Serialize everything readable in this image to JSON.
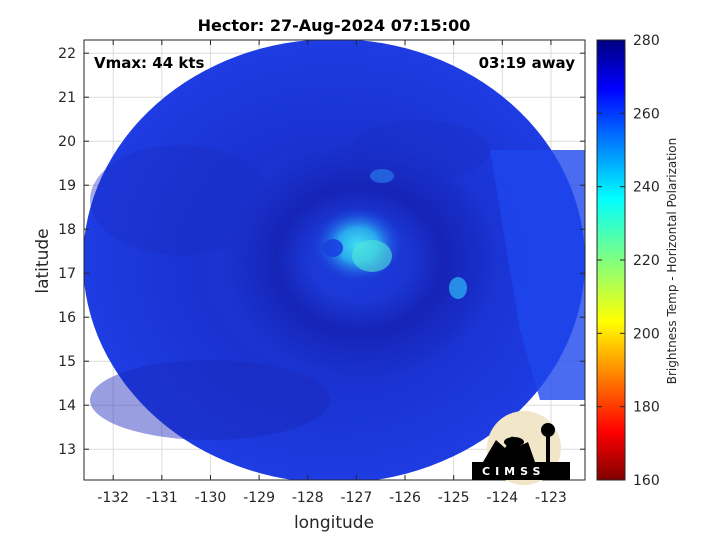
{
  "title": "Hector: 27-Aug-2024 07:15:00",
  "annotations": {
    "vmax": "Vmax: 44 kts",
    "time_away": "03:19 away"
  },
  "logo": {
    "text": "CIMSS"
  },
  "chart_data": {
    "type": "heatmap",
    "xlabel": "longitude",
    "ylabel": "latitude",
    "xlim": [
      -132.6,
      -122.3
    ],
    "ylim": [
      12.3,
      22.3
    ],
    "xticks": [
      -132,
      -131,
      -130,
      -129,
      -128,
      -127,
      -126,
      -125,
      -124,
      -123
    ],
    "xtick_labels": [
      "-132",
      "-131",
      "-130",
      "-129",
      "-128",
      "-127",
      "-126",
      "-125",
      "-124",
      "-123"
    ],
    "yticks": [
      13,
      14,
      15,
      16,
      17,
      18,
      19,
      20,
      21,
      22
    ],
    "ytick_labels": [
      "13",
      "14",
      "15",
      "16",
      "17",
      "18",
      "19",
      "20",
      "21",
      "22"
    ],
    "grid": true,
    "storm_center": {
      "lon": -127.4,
      "lat": 17.4
    },
    "colorbar": {
      "label": "Brightness Temp - Horizontal Polarization",
      "range": [
        160,
        280
      ],
      "ticks": [
        160,
        180,
        200,
        220,
        240,
        260,
        280
      ],
      "tick_labels": [
        "160",
        "180",
        "200",
        "220",
        "240",
        "260",
        "280"
      ],
      "colormap": "jet"
    }
  }
}
